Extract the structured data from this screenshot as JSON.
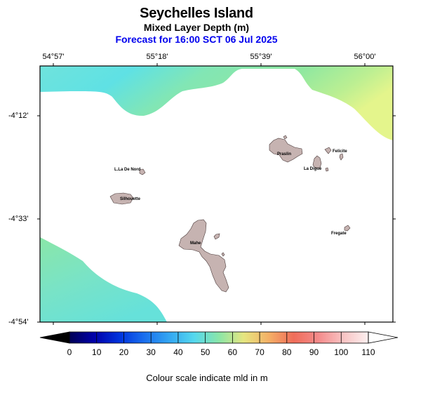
{
  "title": "Seychelles Island",
  "subtitle": "Mixed Layer Depth (m)",
  "forecast": "Forecast for  16:00 SCT 06 Jul 2025",
  "lon_labels": [
    "54°57'",
    "55°18'",
    "55°39'",
    "56°00'"
  ],
  "lat_labels": [
    "-4°12'",
    "-4°33'",
    "-4°54'"
  ],
  "places": [
    "L.La De Nord",
    "Silhouette",
    "Praslin",
    "Felicite",
    "La Digue",
    "Mahe",
    "Fregate"
  ],
  "colorbar": {
    "ticks": [
      "0",
      "10",
      "20",
      "30",
      "40",
      "50",
      "60",
      "70",
      "80",
      "90",
      "100",
      "110"
    ],
    "label": "Colour scale indicate mld in m",
    "colors": [
      "#000055",
      "#0000aa",
      "#0033dd",
      "#1a6fee",
      "#33a6f2",
      "#55d8ee",
      "#8ae6a8",
      "#e6e680",
      "#f4b066",
      "#f06d5a",
      "#f48b8b",
      "#f9c4c4",
      "#fdf0f0"
    ]
  },
  "field_colors": {
    "cyan": "#5ce3e8",
    "teal": "#79e3c8",
    "green": "#8fe6a2",
    "yellow": "#e4f58c"
  },
  "land_color": "#c6b3b1"
}
